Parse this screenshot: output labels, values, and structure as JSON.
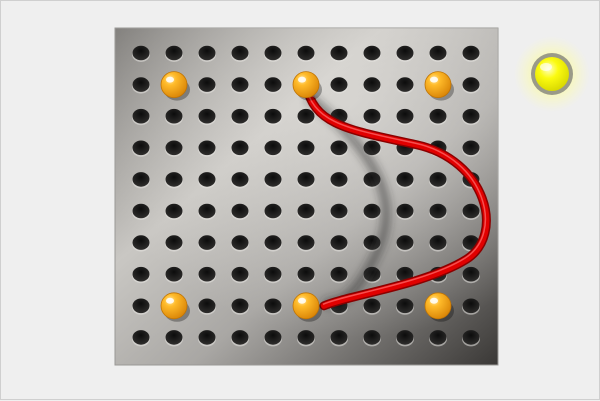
{
  "board": {
    "rows": 10,
    "cols": 11,
    "colors": {
      "plate_light": "#c8c6c2",
      "plate_mid": "#8c8a87",
      "plate_dark": "#3e3c3a",
      "hole": "#1a1a1a",
      "background": "#efefef"
    }
  },
  "pegs": {
    "color": "#f6a51c",
    "items": [
      {
        "name": "peg-top-left",
        "col": 2,
        "row": 2
      },
      {
        "name": "peg-top-middle",
        "col": 6,
        "row": 2
      },
      {
        "name": "peg-top-right",
        "col": 10,
        "row": 2
      },
      {
        "name": "peg-bottom-left",
        "col": 2,
        "row": 9
      },
      {
        "name": "peg-bottom-middle",
        "col": 6,
        "row": 9
      },
      {
        "name": "peg-bottom-right",
        "col": 10,
        "row": 9
      }
    ]
  },
  "wire": {
    "color": "#e10000",
    "from": {
      "col": 6,
      "row": 2
    },
    "to": {
      "col": 6,
      "row": 9
    }
  },
  "indicator": {
    "icon": "bulb-icon",
    "state": "lit",
    "color": "#f5f500"
  }
}
